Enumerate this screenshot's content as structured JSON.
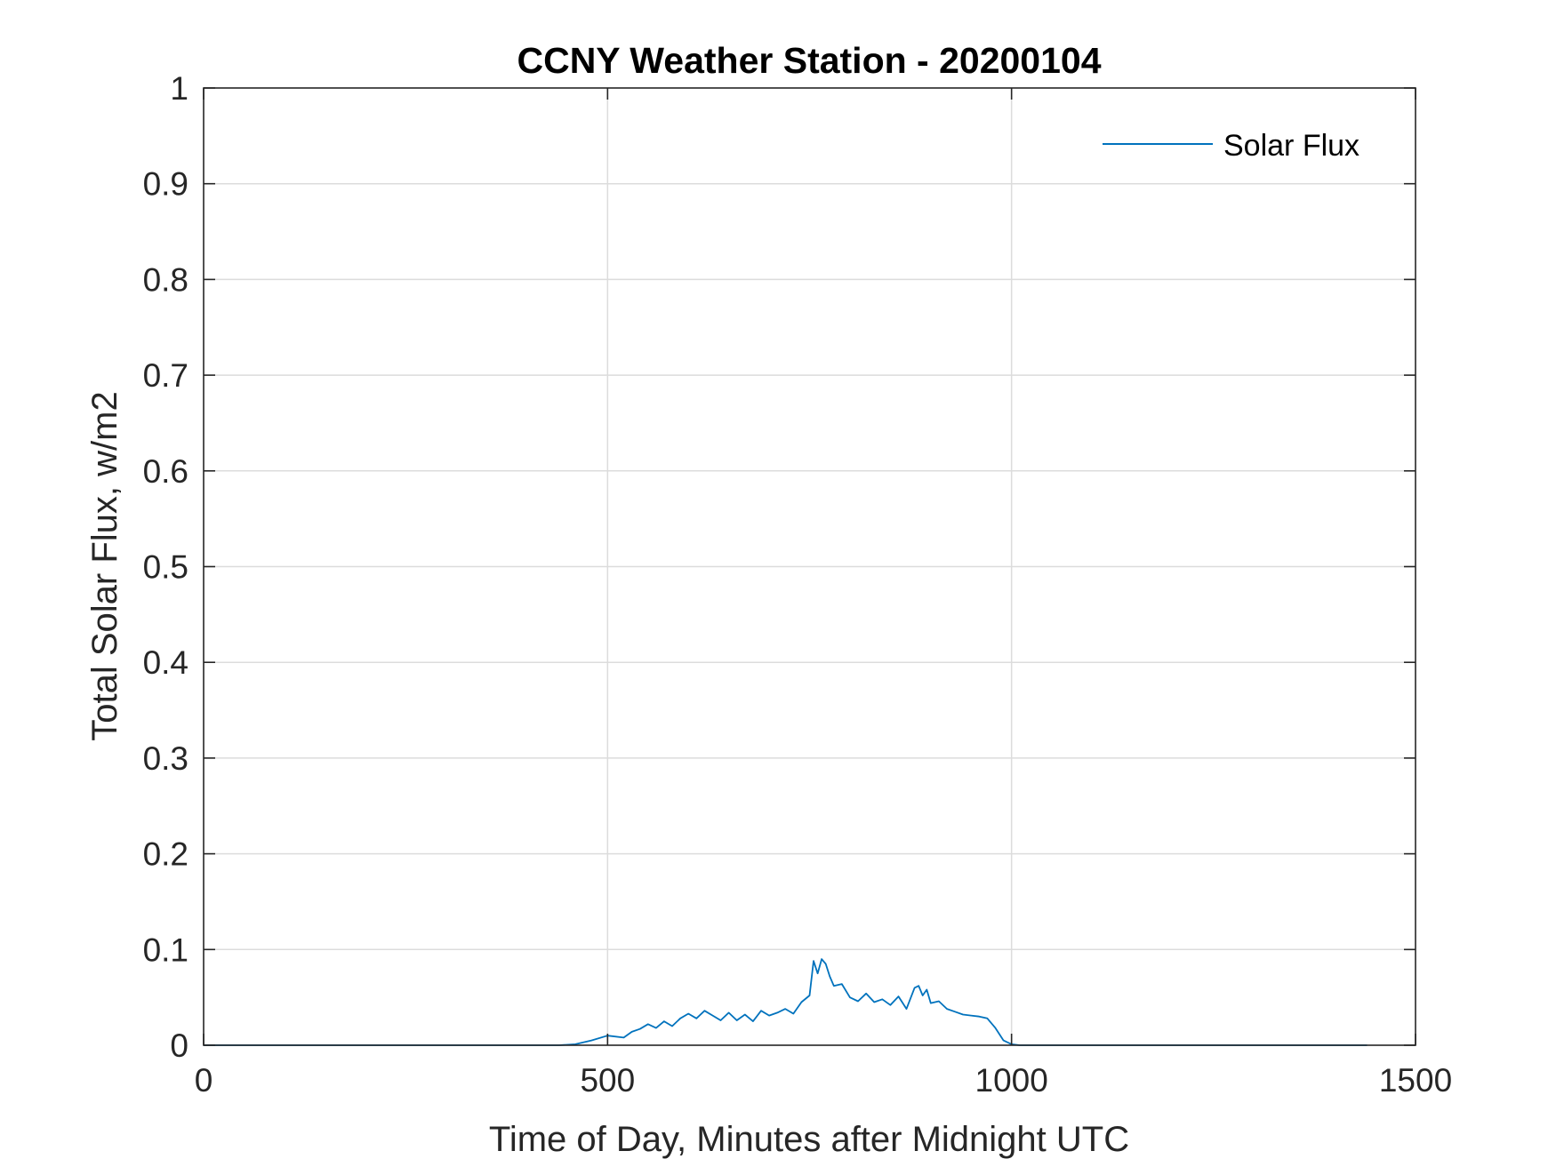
{
  "chart_data": {
    "type": "line",
    "title": "CCNY Weather Station - 20200104",
    "xlabel": "Time of Day, Minutes after Midnight UTC",
    "ylabel": "Total Solar Flux, w/m2",
    "xlim": [
      0,
      1500
    ],
    "ylim": [
      0,
      1
    ],
    "xticks": [
      0,
      500,
      1000,
      1500
    ],
    "xtick_labels": [
      "0",
      "500",
      "1000",
      "1500"
    ],
    "yticks": [
      0,
      0.1,
      0.2,
      0.3,
      0.4,
      0.5,
      0.6,
      0.7,
      0.8,
      0.9,
      1
    ],
    "ytick_labels": [
      "0",
      "0.1",
      "0.2",
      "0.3",
      "0.4",
      "0.5",
      "0.6",
      "0.7",
      "0.8",
      "0.9",
      "1"
    ],
    "grid": true,
    "legend_position": "top-right",
    "series": [
      {
        "name": "Solar Flux",
        "color": "#0072BD",
        "x": [
          0,
          100,
          200,
          300,
          400,
          440,
          460,
          480,
          500,
          520,
          530,
          540,
          550,
          560,
          570,
          580,
          590,
          600,
          610,
          620,
          630,
          640,
          650,
          660,
          670,
          680,
          690,
          700,
          710,
          720,
          730,
          740,
          750,
          755,
          760,
          765,
          770,
          775,
          780,
          790,
          800,
          810,
          820,
          830,
          840,
          850,
          860,
          870,
          880,
          885,
          890,
          895,
          900,
          910,
          920,
          930,
          940,
          950,
          960,
          970,
          980,
          990,
          1000,
          1010,
          1100,
          1200,
          1300,
          1440
        ],
        "y": [
          0,
          0,
          0,
          0,
          0,
          0,
          0.001,
          0.005,
          0.01,
          0.008,
          0.014,
          0.017,
          0.022,
          0.018,
          0.025,
          0.02,
          0.028,
          0.033,
          0.028,
          0.036,
          0.031,
          0.026,
          0.034,
          0.026,
          0.032,
          0.025,
          0.036,
          0.031,
          0.034,
          0.038,
          0.033,
          0.045,
          0.052,
          0.088,
          0.075,
          0.09,
          0.085,
          0.072,
          0.062,
          0.064,
          0.05,
          0.046,
          0.054,
          0.045,
          0.048,
          0.042,
          0.051,
          0.038,
          0.06,
          0.062,
          0.052,
          0.058,
          0.044,
          0.046,
          0.038,
          0.035,
          0.032,
          0.031,
          0.03,
          0.028,
          0.018,
          0.005,
          0.001,
          0,
          0,
          0,
          0,
          0
        ]
      }
    ]
  }
}
